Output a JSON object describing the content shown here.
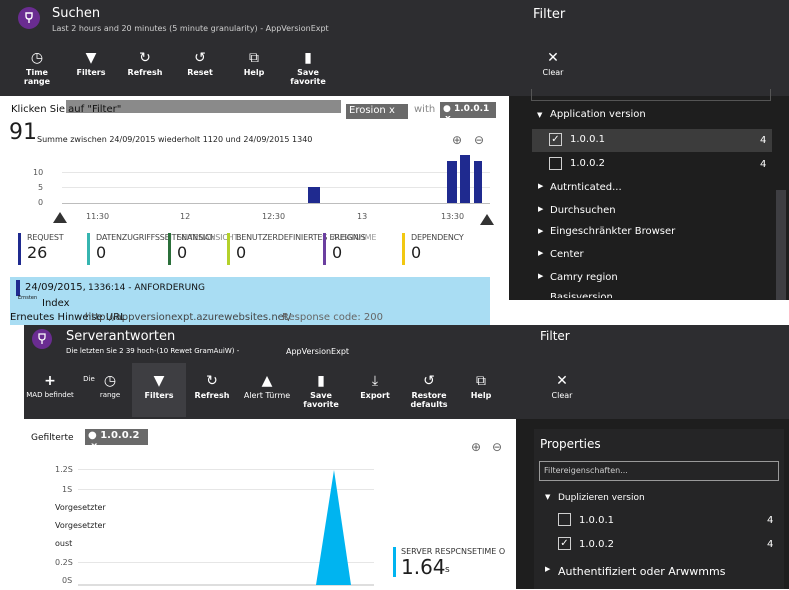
{
  "top": {
    "title": "Suchen",
    "subtitle": "Last 2 hours and 20 minutes (5 minute granularity) - AppVersionExpt",
    "toolbar": [
      {
        "label": "Time range",
        "icon": "clock-icon"
      },
      {
        "label": "Filters",
        "icon": "filter-icon"
      },
      {
        "label": "Refresh",
        "icon": "refresh-icon"
      },
      {
        "label": "Reset",
        "icon": "reset-icon"
      },
      {
        "label": "Help",
        "icon": "help-icon"
      },
      {
        "label": "Save favorite",
        "icon": "bookmark-icon"
      }
    ],
    "filter_bar_label": "Klicken Sie auf \"Filter\"",
    "erosion_chip": "Erosion x",
    "with_label": "with",
    "version_chip": "1.0.0.1",
    "version_chip_close": "x",
    "total_count": "91",
    "summary": "Summe zwischen 24/09/2015 wiederholt 1120 und 24/09/2015 1340",
    "y_ticks": [
      "10",
      "5",
      "0"
    ],
    "x_ticks": [
      "11:30",
      "12",
      "12:30",
      "13",
      "13:30"
    ],
    "metrics": [
      {
        "label": "REQUEST",
        "value": "26",
        "color": "#1f2a8f"
      },
      {
        "label": "DATENZUGRIFFSSEITENANSICHT",
        "value": "0",
        "color": "#36b5b0"
      },
      {
        "label": "SEITENANSICHT",
        "value": "0",
        "color": "#2b6f3a"
      },
      {
        "label": "BENUTZERDEFINIERTES EREIGNIS",
        "value": "0",
        "color": "#b4d12b"
      },
      {
        "label": "AUSNAHME",
        "value": "0",
        "color": "#6b3fa0"
      },
      {
        "label": "DEPENDENCY",
        "value": "0",
        "color": "#f2c811"
      }
    ],
    "result": {
      "date": "24/09/2015,",
      "time_type": "1336:14 - ANFORDERUNG",
      "small_label": "Ernsten",
      "index_label": "Index",
      "line2_prefix": "Erneutes Hinweise URL",
      "url": "http://appversionexpt.azurewebsites.net/",
      "response_label": "Response code: 200"
    }
  },
  "top_filter": {
    "title": "Filter",
    "clear_label": "Clear",
    "group": "Application version",
    "items": [
      {
        "label": "1.0.0.1",
        "checked": true,
        "count": "4"
      },
      {
        "label": "1.0.0.2",
        "checked": false,
        "count": "4"
      }
    ],
    "collapsed": [
      "Autrnticated...",
      "Durchsuchen",
      "Eingeschränkter Browser",
      "Center",
      "Camry region",
      "Basisversion..."
    ]
  },
  "bottom": {
    "title": "Serverantworten",
    "subtitle_left": "Die letzten Sie 2 39 hoch-(10 Rewet GramAuiW) -",
    "subtitle_right": "AppVersionExpt",
    "toolbar": [
      {
        "label": "MAD befindet",
        "icon": "add-icon"
      },
      {
        "label": "Die",
        "icon": "clock-icon"
      },
      {
        "label": "range",
        "icon": ""
      },
      {
        "label": "Filters",
        "icon": "filter-icon"
      },
      {
        "label": "Refresh",
        "icon": "refresh-icon"
      },
      {
        "label": "Alert Türme",
        "icon": "bell-icon"
      },
      {
        "label": "Save favorite",
        "icon": "bookmark-icon"
      },
      {
        "label": "Export",
        "icon": "download-icon"
      },
      {
        "label": "Restore defaults",
        "icon": "restore-icon"
      },
      {
        "label": "Help",
        "icon": "help-icon"
      }
    ],
    "filter_label": "Gefilterte",
    "version_chip": "1.0.0.2",
    "version_chip_close": "x",
    "y_ticks": [
      "1.2S",
      "1S",
      "Vorgesetzter",
      "Vorgesetzter",
      "oust",
      "0.2S",
      "0S"
    ],
    "metric_label": "SERVER RESPCNSETIME O",
    "metric_value": "1.64",
    "metric_unit": "s"
  },
  "bottom_filter": {
    "title": "Filter",
    "clear_label": "Clear",
    "properties_title": "Properties",
    "search_placeholder": "Filtereigenschaften...",
    "group": "Duplizieren version",
    "items": [
      {
        "label": "1.0.0.1",
        "checked": false,
        "count": "4"
      },
      {
        "label": "1.0.0.2",
        "checked": true,
        "count": "4"
      }
    ],
    "collapsed": [
      "Authentifiziert oder Arwwmms"
    ]
  },
  "colors": {
    "dark": "#2d2d30",
    "panel": "#1e1e1e",
    "accent_blue": "#1f2a8f",
    "spike_cyan": "#00b4f0",
    "result_bg": "#a9ddf3"
  },
  "chart_data": [
    {
      "type": "bar",
      "title": "",
      "y_ticks": [
        "10",
        "5",
        "0"
      ],
      "x_ticks": [
        "11:30",
        "12",
        "12:30",
        "13",
        "13:30"
      ],
      "series": [
        {
          "values": [
            [
              12.8,
              3
            ],
            [
              13.5,
              9
            ],
            [
              13.58,
              10
            ],
            [
              13.67,
              9
            ]
          ]
        }
      ],
      "ylim": [
        0,
        12
      ]
    },
    {
      "type": "area",
      "title": "",
      "series": [
        {
          "name": "SERVER RESPCNSETIME O",
          "values": [
            [
              0,
              0
            ],
            [
              0.6,
              0
            ],
            [
              0.65,
              1.35
            ],
            [
              0.7,
              0
            ],
            [
              1,
              0
            ]
          ]
        }
      ],
      "ylim": [
        0,
        1.4
      ]
    }
  ]
}
